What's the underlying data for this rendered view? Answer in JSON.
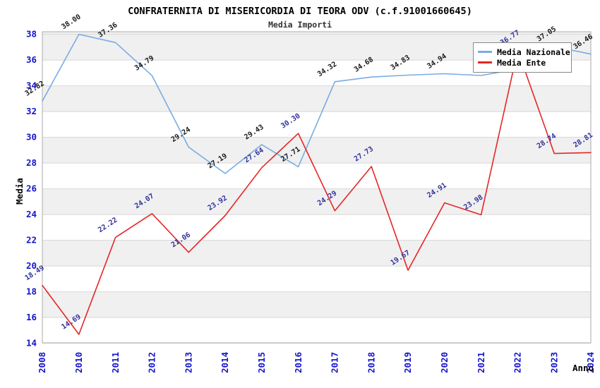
{
  "title": "CONFRATERNITA DI MISERICORDIA DI TEORA ODV (c.f.91001660645)",
  "subtitle": "Media Importi",
  "legend": {
    "items": [
      {
        "label": "Media Nazionale",
        "color": "#78ace2"
      },
      {
        "label": "Media Ente",
        "color": "#e62626"
      }
    ]
  },
  "axes": {
    "x_title": "Anno",
    "y_title": "Media",
    "y_ticks": [
      14,
      16,
      18,
      20,
      22,
      24,
      26,
      28,
      30,
      32,
      34,
      36,
      38
    ],
    "y_range": [
      14,
      38
    ],
    "tick_label_color": "#1414cc",
    "grid": true
  },
  "colors": {
    "band": "#f0f0f0",
    "grid": "#d8d8d8",
    "border": "#ababab",
    "axis_title": "#000000"
  },
  "chart_data": {
    "type": "line",
    "categories": [
      "2008",
      "2010",
      "2011",
      "2012",
      "2013",
      "2014",
      "2015",
      "2016",
      "2017",
      "2018",
      "2019",
      "2020",
      "2021",
      "2022",
      "2023",
      "2024"
    ],
    "series": [
      {
        "name": "Media Nazionale",
        "color": "#78ace2",
        "label_color": "#1a1a1a",
        "values": [
          32.82,
          38.0,
          37.36,
          34.79,
          29.24,
          27.19,
          29.43,
          27.71,
          34.32,
          34.68,
          34.83,
          34.94,
          34.8,
          35.3,
          37.05,
          36.46
        ],
        "point_labels": [
          "32.82",
          "38.00",
          "37.36",
          "34.79",
          "29.24",
          "27.19",
          "29.43",
          "27.71",
          "34.32",
          "34.68",
          "34.83",
          "34.94",
          null,
          null,
          "37.05",
          "36.46"
        ]
      },
      {
        "name": "Media Ente",
        "color": "#e62626",
        "label_color": "#31319c",
        "values": [
          18.49,
          14.69,
          22.22,
          24.07,
          21.06,
          23.92,
          27.64,
          30.3,
          24.29,
          27.73,
          19.67,
          24.91,
          23.98,
          36.77,
          28.74,
          28.81
        ],
        "point_labels": [
          "18.49",
          "14.69",
          "22.22",
          "24.07",
          "21.06",
          "23.92",
          "27.64",
          "30.30",
          "24.29",
          "27.73",
          "19.67",
          "24.91",
          "23.98",
          "36.77",
          "28.74",
          "28.81"
        ]
      }
    ],
    "title": "Media Importi",
    "xlabel": "Anno",
    "ylabel": "Media",
    "ylim": [
      14,
      38
    ],
    "legend_position": "top-right",
    "grid": "horizontal-bands"
  }
}
